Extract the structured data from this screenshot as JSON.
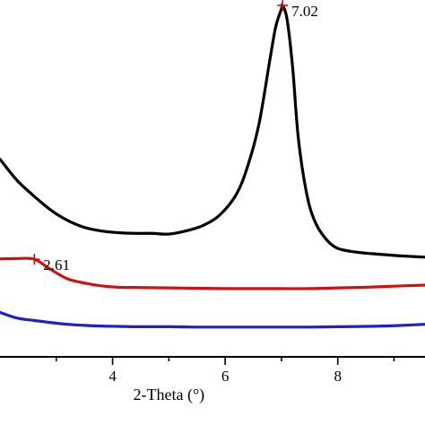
{
  "chart_data": {
    "type": "line",
    "xlabel": "2-Theta (°)",
    "ylabel": "",
    "title": "",
    "xlim": [
      2.0,
      9.55
    ],
    "ylim": [
      0,
      100
    ],
    "x_ticks": [
      4,
      6,
      8
    ],
    "grid": false,
    "series": [
      {
        "color": "#000000",
        "x": [
          2.0,
          2.3,
          2.6,
          2.9,
          3.2,
          3.5,
          3.8,
          4.1,
          4.4,
          4.7,
          5.0,
          5.3,
          5.6,
          5.9,
          6.2,
          6.4,
          6.6,
          6.8,
          6.9,
          7.0,
          7.02,
          7.1,
          7.2,
          7.3,
          7.45,
          7.6,
          7.8,
          8.0,
          8.3,
          8.6,
          9.0,
          9.3,
          9.55
        ],
        "y": [
          56,
          50,
          45.5,
          41.5,
          38.5,
          36.5,
          35.5,
          35,
          34.8,
          34.8,
          34.6,
          35.5,
          37,
          40,
          46,
          54,
          66,
          85,
          94,
          99,
          100,
          96,
          82,
          62,
          46,
          38,
          33,
          30.5,
          29.5,
          29,
          28.5,
          28.2,
          28
        ]
      },
      {
        "color": "#d01010",
        "x": [
          2.0,
          2.3,
          2.61,
          2.9,
          3.2,
          3.5,
          3.8,
          4.1,
          4.5,
          5.0,
          5.5,
          6.0,
          6.5,
          7.0,
          7.5,
          8.0,
          8.5,
          9.0,
          9.55
        ],
        "y": [
          27.5,
          27.6,
          27.4,
          24.5,
          21.8,
          20.6,
          19.8,
          19.4,
          19.3,
          19.2,
          19.1,
          19.0,
          19.0,
          19.0,
          19.0,
          19.2,
          19.4,
          19.7,
          20.0
        ]
      },
      {
        "color": "#2020c8",
        "x": [
          2.0,
          2.3,
          2.6,
          2.9,
          3.2,
          3.5,
          3.8,
          4.1,
          4.5,
          5.0,
          5.5,
          6.0,
          6.5,
          7.0,
          7.5,
          8.0,
          8.5,
          9.0,
          9.55
        ],
        "y": [
          12.2,
          10.6,
          9.9,
          9.3,
          8.8,
          8.5,
          8.3,
          8.2,
          8.1,
          8.1,
          8.0,
          8.0,
          8.0,
          8.0,
          8.0,
          8.1,
          8.2,
          8.4,
          8.8
        ]
      }
    ],
    "annotations": [
      {
        "label": "7.02",
        "x": 7.02,
        "y": 100,
        "color": "#d01010"
      },
      {
        "label": "2.61",
        "x": 2.61,
        "y": 27.4,
        "color": "#d01010"
      }
    ]
  }
}
